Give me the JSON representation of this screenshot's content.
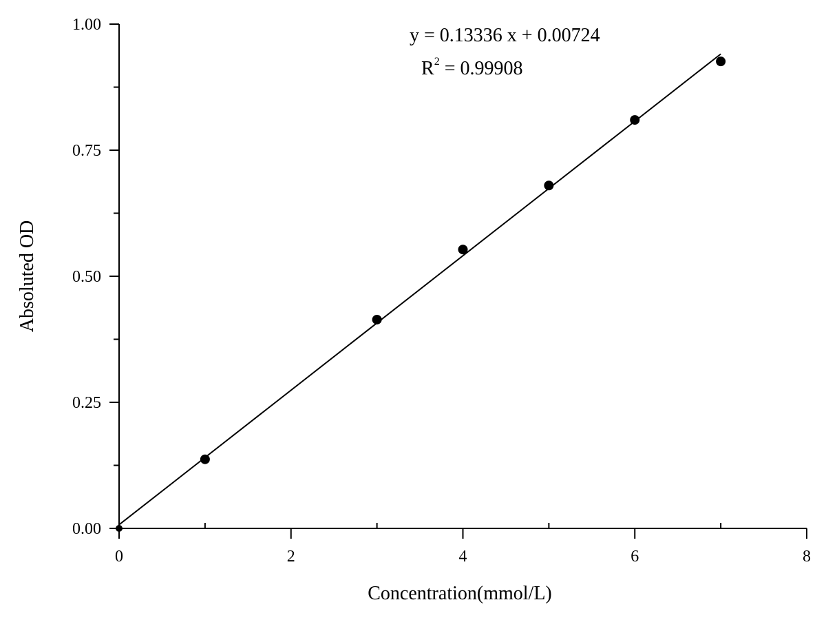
{
  "chart_data": {
    "type": "scatter",
    "title": "",
    "xlabel": "Concentration(mmol/L)",
    "ylabel": "Absoluted OD",
    "xlim": [
      0,
      8
    ],
    "ylim": [
      0,
      1.0
    ],
    "x_ticks": [
      "0",
      "2",
      "4",
      "6",
      "8"
    ],
    "y_ticks": [
      "0.00",
      "0.25",
      "0.50",
      "0.75",
      "1.00"
    ],
    "grid": false,
    "points": [
      {
        "x": 0,
        "y": 0.0
      },
      {
        "x": 1,
        "y": 0.137
      },
      {
        "x": 3,
        "y": 0.414
      },
      {
        "x": 4,
        "y": 0.553
      },
      {
        "x": 5,
        "y": 0.68
      },
      {
        "x": 6,
        "y": 0.81
      },
      {
        "x": 7,
        "y": 0.926
      }
    ],
    "fit": {
      "slope": 0.13336,
      "intercept": 0.00724,
      "x_range": [
        0,
        7
      ],
      "equation_label": "y = 0.13336 x + 0.00724",
      "r2_prefix": "R",
      "r2_sup": "2",
      "r2_value": " = 0.99908"
    },
    "colors": {
      "marker": "#000000",
      "line": "#000000"
    }
  }
}
